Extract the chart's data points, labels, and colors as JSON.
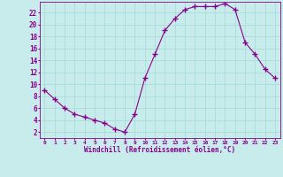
{
  "x": [
    0,
    1,
    2,
    3,
    4,
    5,
    6,
    7,
    8,
    9,
    10,
    11,
    12,
    13,
    14,
    15,
    16,
    17,
    18,
    19,
    20,
    21,
    22,
    23
  ],
  "y": [
    9,
    7.5,
    6,
    5,
    4.5,
    4,
    3.5,
    2.5,
    2,
    5,
    11,
    15,
    19,
    21,
    22.5,
    23,
    23,
    23,
    23.5,
    22.5,
    17,
    15,
    12.5,
    11
  ],
  "line_color": "#880088",
  "marker": "+",
  "marker_size": 4,
  "bg_color": "#c8ecec",
  "grid_color": "#aadddd",
  "xlabel": "Windchill (Refroidissement éolien,°C)",
  "xlabel_color": "#880088",
  "tick_color": "#880088",
  "ytick_labels": [
    "2",
    "4",
    "6",
    "8",
    "10",
    "12",
    "14",
    "16",
    "18",
    "20",
    "22"
  ],
  "ytick_vals": [
    2,
    4,
    6,
    8,
    10,
    12,
    14,
    16,
    18,
    20,
    22
  ],
  "ylim": [
    1,
    23.8
  ],
  "xlim": [
    -0.5,
    23.5
  ]
}
